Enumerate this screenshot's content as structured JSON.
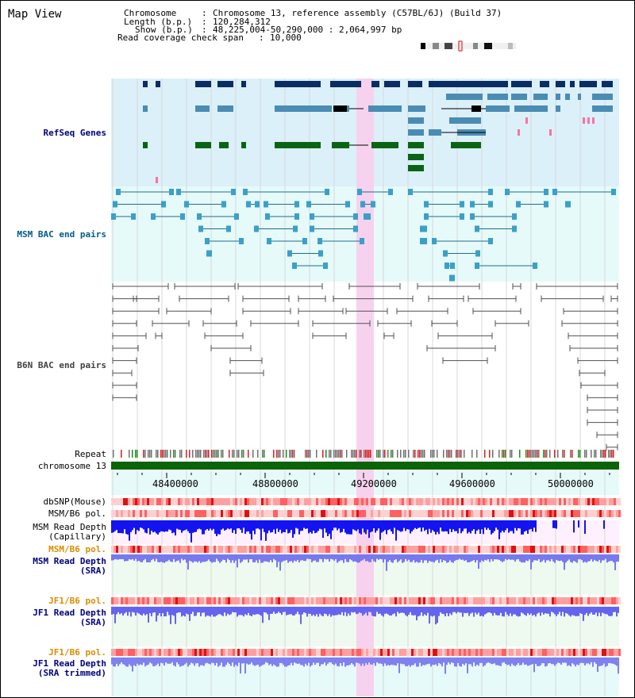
{
  "page": {
    "title": "Map View"
  },
  "info": {
    "chromosome_label": "Chromosome",
    "chromosome_value": "Chromosome 13, reference assembly (C57BL/6J) (Build 37)",
    "length_label": "Length (b.p.)",
    "length_value": "120,284,312",
    "show_label": "Show (b.p.)",
    "show_value": "48,225,004-50,290,000 : 2,064,997 bp",
    "span_label": "Read coverage check span",
    "span_value": "10,000"
  },
  "tracks": {
    "refseq": "RefSeq Genes",
    "msm_bac": "MSM BAC end pairs",
    "b6n_bac": "B6N BAC end pairs",
    "repeat": "Repeat",
    "chromosome": "chromosome 13",
    "dbsnp": "dbSNP(Mouse)",
    "msm_b6_pol_1": "MSM/B6 pol.",
    "msm_depth_cap": "MSM Read Depth\n(Capillary)",
    "msm_b6_pol_2": "MSM/B6 pol.",
    "msm_depth_sra": "MSM Read Depth\n(SRA)",
    "jf1_b6_pol_1": "JF1/B6 pol.",
    "jf1_depth_sra": "JF1 Read Depth\n(SRA)",
    "jf1_b6_pol_2": "JF1/B6 pol.",
    "jf1_depth_trim": "JF1 Read Depth\n(SRA trimmed)"
  },
  "axis": {
    "ticks": [
      "48400000",
      "48800000",
      "49200000",
      "49600000",
      "50000000"
    ]
  },
  "colors": {
    "refseq_bg": "#dcf0fa",
    "msm_bg": "#e6fafa",
    "gene_dark": "#0a2d64",
    "gene_mid": "#4a8cb4",
    "gene_green": "#0a6414",
    "bac": "#1e6e8c",
    "b6n": "#787878",
    "chromosome": "#0a640a",
    "highlight": "#f7d2ee",
    "label_navy": "#000080",
    "label_teal": "#005a8c",
    "label_orange": "#dc8c00"
  }
}
